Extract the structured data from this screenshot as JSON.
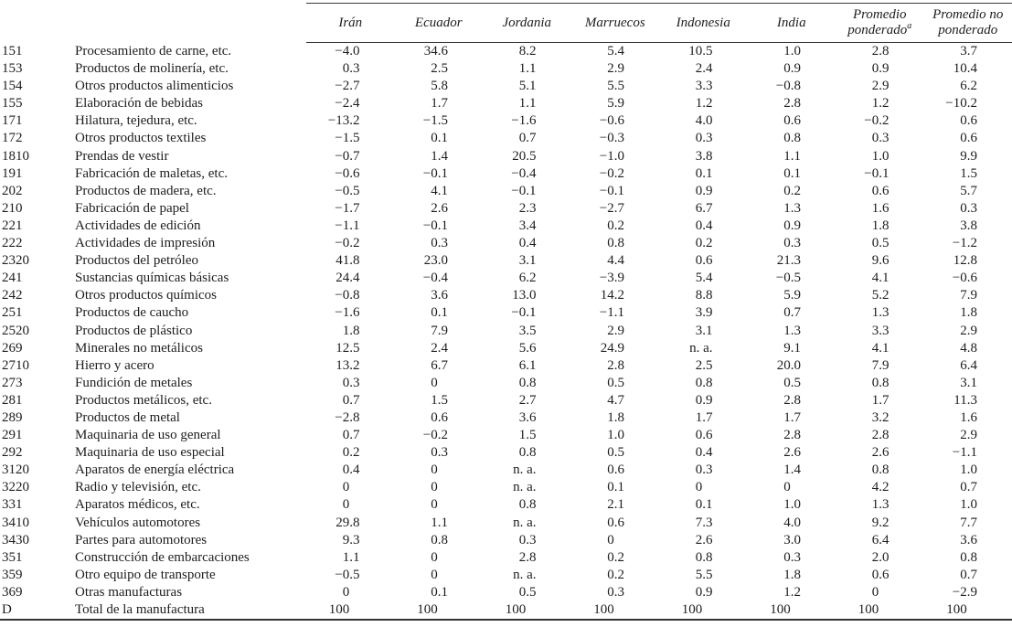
{
  "table": {
    "columns": [
      {
        "label": "Irán",
        "sup": ""
      },
      {
        "label": "Ecuador",
        "sup": ""
      },
      {
        "label": "Jordania",
        "sup": ""
      },
      {
        "label": "Marruecos",
        "sup": ""
      },
      {
        "label": "Indonesia",
        "sup": ""
      },
      {
        "label": "India",
        "sup": ""
      },
      {
        "label": "Promedio ponderado",
        "sup": "a"
      },
      {
        "label": "Promedio no ponderado",
        "sup": ""
      }
    ],
    "rows": [
      {
        "code": "151",
        "name": "Procesamiento de carne, etc.",
        "values": [
          "−4.0",
          "34.6",
          "8.2",
          "5.4",
          "10.5",
          "1.0",
          "2.8",
          "3.7"
        ]
      },
      {
        "code": "153",
        "name": "Productos de molinería, etc.",
        "values": [
          "0.3",
          "2.5",
          "1.1",
          "2.9",
          "2.4",
          "0.9",
          "0.9",
          "10.4"
        ]
      },
      {
        "code": "154",
        "name": "Otros productos alimenticios",
        "values": [
          "−2.7",
          "5.8",
          "5.1",
          "5.5",
          "3.3",
          "−0.8",
          "2.9",
          "6.2"
        ]
      },
      {
        "code": "155",
        "name": "Elaboración de bebidas",
        "values": [
          "−2.4",
          "1.7",
          "1.1",
          "5.9",
          "1.2",
          "2.8",
          "1.2",
          "−10.2"
        ]
      },
      {
        "code": "171",
        "name": "Hilatura, tejedura, etc.",
        "values": [
          "−13.2",
          "−1.5",
          "−1.6",
          "−0.6",
          "4.0",
          "0.6",
          "−0.2",
          "0.6"
        ]
      },
      {
        "code": "172",
        "name": "Otros productos textiles",
        "values": [
          "−1.5",
          "0.1",
          "0.7",
          "−0.3",
          "0.3",
          "0.8",
          "0.3",
          "0.6"
        ]
      },
      {
        "code": "1810",
        "name": "Prendas de vestir",
        "values": [
          "−0.7",
          "1.4",
          "20.5",
          "−1.0",
          "3.8",
          "1.1",
          "1.0",
          "9.9"
        ]
      },
      {
        "code": "191",
        "name": "Fabricación de maletas, etc.",
        "values": [
          "−0.6",
          "−0.1",
          "−0.4",
          "−0.2",
          "0.1",
          "0.1",
          "−0.1",
          "1.5"
        ]
      },
      {
        "code": "202",
        "name": "Productos de madera, etc.",
        "values": [
          "−0.5",
          "4.1",
          "−0.1",
          "−0.1",
          "0.9",
          "0.2",
          "0.6",
          "5.7"
        ]
      },
      {
        "code": "210",
        "name": "Fabricación de papel",
        "values": [
          "−1.7",
          "2.6",
          "2.3",
          "−2.7",
          "6.7",
          "1.3",
          "1.6",
          "0.3"
        ]
      },
      {
        "code": "221",
        "name": "Actividades de edición",
        "values": [
          "−1.1",
          "−0.1",
          "3.4",
          "0.2",
          "0.4",
          "0.9",
          "1.8",
          "3.8"
        ]
      },
      {
        "code": "222",
        "name": "Actividades de impresión",
        "values": [
          "−0.2",
          "0.3",
          "0.4",
          "0.8",
          "0.2",
          "0.3",
          "0.5",
          "−1.2"
        ]
      },
      {
        "code": "2320",
        "name": "Productos del petróleo",
        "values": [
          "41.8",
          "23.0",
          "3.1",
          "4.4",
          "0.6",
          "21.3",
          "9.6",
          "12.8"
        ]
      },
      {
        "code": "241",
        "name": "Sustancias químicas básicas",
        "values": [
          "24.4",
          "−0.4",
          "6.2",
          "−3.9",
          "5.4",
          "−0.5",
          "4.1",
          "−0.6"
        ]
      },
      {
        "code": "242",
        "name": "Otros productos químicos",
        "values": [
          "−0.8",
          "3.6",
          "13.0",
          "14.2",
          "8.8",
          "5.9",
          "5.2",
          "7.9"
        ]
      },
      {
        "code": "251",
        "name": "Productos de caucho",
        "values": [
          "−1.6",
          "0.1",
          "−0.1",
          "−1.1",
          "3.9",
          "0.7",
          "1.3",
          "1.8"
        ]
      },
      {
        "code": "2520",
        "name": "Productos de plástico",
        "values": [
          "1.8",
          "7.9",
          "3.5",
          "2.9",
          "3.1",
          "1.3",
          "3.3",
          "2.9"
        ]
      },
      {
        "code": "269",
        "name": "Minerales no metálicos",
        "values": [
          "12.5",
          "2.4",
          "5.6",
          "24.9",
          "n. a.",
          "9.1",
          "4.1",
          "4.8"
        ]
      },
      {
        "code": "2710",
        "name": "Hierro y acero",
        "values": [
          "13.2",
          "6.7",
          "6.1",
          "2.8",
          "2.5",
          "20.0",
          "7.9",
          "6.4"
        ]
      },
      {
        "code": "273",
        "name": "Fundición de metales",
        "values": [
          "0.3",
          "0",
          "0.8",
          "0.5",
          "0.8",
          "0.5",
          "0.8",
          "3.1"
        ]
      },
      {
        "code": "281",
        "name": "Productos metálicos, etc.",
        "values": [
          "0.7",
          "1.5",
          "2.7",
          "4.7",
          "0.9",
          "2.8",
          "1.7",
          "11.3"
        ]
      },
      {
        "code": "289",
        "name": "Productos de metal",
        "values": [
          "−2.8",
          "0.6",
          "3.6",
          "1.8",
          "1.7",
          "1.7",
          "3.2",
          "1.6"
        ]
      },
      {
        "code": "291",
        "name": "Maquinaria de uso general",
        "values": [
          "0.7",
          "−0.2",
          "1.5",
          "1.0",
          "0.6",
          "2.8",
          "2.8",
          "2.9"
        ]
      },
      {
        "code": "292",
        "name": "Maquinaria de uso especial",
        "values": [
          "0.2",
          "0.3",
          "0.8",
          "0.5",
          "0.4",
          "2.6",
          "2.6",
          "−1.1"
        ]
      },
      {
        "code": "3120",
        "name": "Aparatos de energía eléctrica",
        "values": [
          "0.4",
          "0",
          "n. a.",
          "0.6",
          "0.3",
          "1.4",
          "0.8",
          "1.0"
        ]
      },
      {
        "code": "3220",
        "name": "Radio y televisión, etc.",
        "values": [
          "0",
          "0",
          "n. a.",
          "0.1",
          "0",
          "0",
          "4.2",
          "0.7"
        ]
      },
      {
        "code": "331",
        "name": "Aparatos médicos, etc.",
        "values": [
          "0",
          "0",
          "0.8",
          "2.1",
          "0.1",
          "1.0",
          "1.3",
          "1.0"
        ]
      },
      {
        "code": "3410",
        "name": "Vehículos automotores",
        "values": [
          "29.8",
          "1.1",
          "n. a.",
          "0.6",
          "7.3",
          "4.0",
          "9.2",
          "7.7"
        ]
      },
      {
        "code": "3430",
        "name": "Partes para automotores",
        "values": [
          "9.3",
          "0.8",
          "0.3",
          "0",
          "2.6",
          "3.0",
          "6.4",
          "3.6"
        ]
      },
      {
        "code": "351",
        "name": "Construcción de embarcaciones",
        "values": [
          "1.1",
          "0",
          "2.8",
          "0.2",
          "0.8",
          "0.3",
          "2.0",
          "0.8"
        ]
      },
      {
        "code": "359",
        "name": "Otro equipo de transporte",
        "values": [
          "−0.5",
          "0",
          "n. a.",
          "0.2",
          "5.5",
          "1.8",
          "0.6",
          "0.7"
        ]
      },
      {
        "code": "369",
        "name": "Otras manufacturas",
        "values": [
          "0",
          "0.1",
          "0.5",
          "0.3",
          "0.9",
          "1.2",
          "0",
          "−2.9"
        ]
      },
      {
        "code": "D",
        "name": "Total de la manufactura",
        "values": [
          "100",
          "100",
          "100",
          "100",
          "100",
          "100",
          "100",
          "100"
        ]
      }
    ]
  }
}
